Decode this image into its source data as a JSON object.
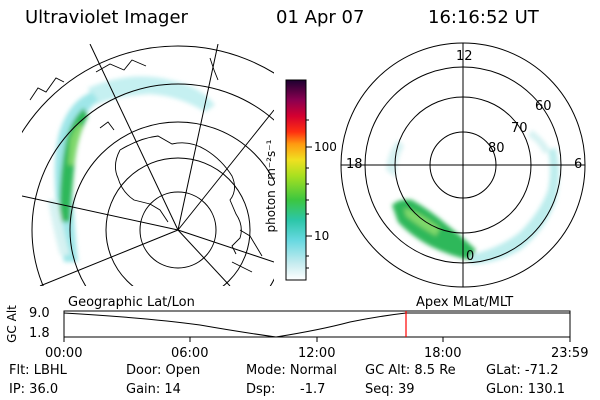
{
  "header": {
    "title": "Ultraviolet Imager",
    "date": "01 Apr 07",
    "time": "16:16:52 UT"
  },
  "colorbar": {
    "unit_label": "photon cm⁻²s⁻¹",
    "ticks": [
      "100",
      "10"
    ]
  },
  "polar_map": {
    "clock_labels": [
      "12",
      "18",
      "6",
      "0"
    ],
    "lat_labels": [
      "60",
      "70",
      "80"
    ]
  },
  "alt_plot": {
    "left_title": "Geographic Lat/Lon",
    "right_title": "Apex MLat/MLT",
    "y_axis_label": "GC Alt",
    "y_ticks": [
      "9.0",
      "1.8"
    ],
    "x_ticks": [
      "00:00",
      "06:00",
      "12:00",
      "18:00",
      "23:59"
    ],
    "marker_color": "#ff0000"
  },
  "info": {
    "filter": "Flt: LBHL",
    "ip": "IP: 36.0",
    "door": "Door: Open",
    "gain": "Gain: 14",
    "mode": "Mode: Normal",
    "dsp_label": "Dsp:",
    "dsp_value": "-1.7",
    "gc_alt": "GC Alt: 8.5 Re",
    "seq": "Seq: 39",
    "glat": "GLat: -71.2",
    "glon": "GLon: 130.1"
  },
  "colors": {
    "aurora_high": "#2db85a",
    "aurora_mid": "#7fd86a",
    "aurora_low": "#9ee6e6",
    "aurora_faint": "#d6f2f2"
  }
}
